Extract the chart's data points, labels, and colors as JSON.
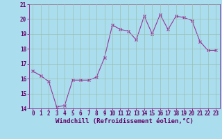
{
  "hours": [
    0,
    1,
    2,
    3,
    4,
    5,
    6,
    7,
    8,
    9,
    10,
    11,
    12,
    13,
    14,
    15,
    16,
    17,
    18,
    19,
    20,
    21,
    22,
    23
  ],
  "values": [
    16.5,
    16.2,
    15.8,
    14.1,
    14.2,
    15.9,
    15.9,
    15.9,
    16.1,
    17.4,
    19.6,
    19.3,
    19.2,
    18.6,
    20.2,
    19.0,
    20.3,
    19.3,
    20.2,
    20.1,
    19.9,
    18.5,
    17.9,
    17.9
  ],
  "ylim": [
    14,
    21
  ],
  "yticks": [
    14,
    15,
    16,
    17,
    18,
    19,
    20,
    21
  ],
  "xlim": [
    -0.5,
    23.5
  ],
  "xticks": [
    0,
    1,
    2,
    3,
    4,
    5,
    6,
    7,
    8,
    9,
    10,
    11,
    12,
    13,
    14,
    15,
    16,
    17,
    18,
    19,
    20,
    21,
    22,
    23
  ],
  "line_color": "#993399",
  "marker": "x",
  "bg_color": "#aaddee",
  "grid_color": "#bbddcc",
  "xlabel": "Windchill (Refroidissement éolien,°C)",
  "xlabel_color": "#660066",
  "tick_color": "#660066",
  "tick_fontsize": 5.5,
  "xlabel_fontsize": 6.5,
  "spine_color": "#993399"
}
